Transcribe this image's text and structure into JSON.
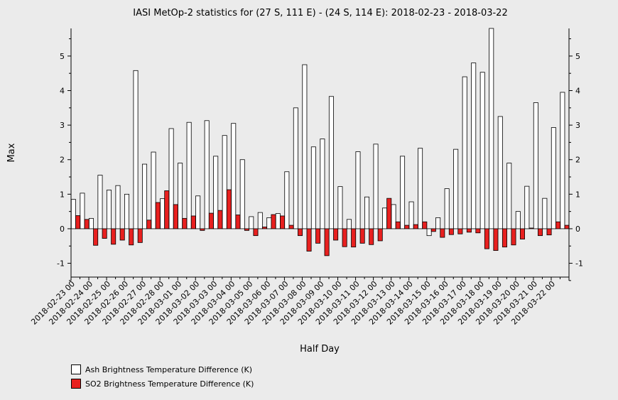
{
  "chart_data": {
    "type": "bar",
    "title": "IASI MetOp-2 statistics for (27 S, 111 E) - (24 S, 114 E): 2018-02-23 - 2018-03-22",
    "xlabel": "Half Day",
    "ylabel": "Max",
    "ylim": [
      -1.4,
      5.8
    ],
    "yticks": [
      -1,
      0,
      1,
      2,
      3,
      4,
      5
    ],
    "grid": false,
    "legend_position": "bottom-left",
    "x_tick_labels": [
      "2018-02-23 00",
      "2018-02-24 00",
      "2018-02-25 00",
      "2018-02-26 00",
      "2018-02-27 00",
      "2018-02-28 00",
      "2018-03-01 00",
      "2018-03-02 00",
      "2018-03-03 00",
      "2018-03-04 00",
      "2018-03-05 00",
      "2018-03-06 00",
      "2018-03-07 00",
      "2018-03-08 00",
      "2018-03-09 00",
      "2018-03-10 00",
      "2018-03-11 00",
      "2018-03-12 00",
      "2018-03-13 00",
      "2018-03-14 00",
      "2018-03-15 00",
      "2018-03-16 00",
      "2018-03-17 00",
      "2018-03-18 00",
      "2018-03-19 00",
      "2018-03-20 00",
      "2018-03-21 00",
      "2018-03-22 00"
    ],
    "series": [
      {
        "name": "Ash Brightness Temperature Difference (K)",
        "color": "#ffffff",
        "values": [
          0.85,
          1.03,
          0.3,
          1.55,
          1.12,
          1.25,
          1.0,
          4.58,
          1.87,
          2.22,
          0.87,
          2.9,
          1.9,
          3.08,
          0.95,
          3.13,
          2.1,
          2.7,
          3.05,
          2.0,
          0.35,
          0.47,
          0.32,
          0.44,
          1.65,
          3.5,
          4.75,
          2.37,
          2.6,
          3.83,
          1.22,
          0.27,
          2.23,
          0.92,
          2.45,
          0.6,
          0.7,
          2.1,
          0.78,
          2.33,
          -0.2,
          0.32,
          1.16,
          2.3,
          4.4,
          4.8,
          4.53,
          5.8,
          3.25,
          1.9,
          0.5,
          1.23,
          3.65,
          0.88,
          2.93,
          3.95
        ]
      },
      {
        "name": "SO2 Brightness Temperature Difference (K)",
        "color": "#e8201f",
        "values": [
          0.38,
          0.27,
          -0.48,
          -0.28,
          -0.45,
          -0.33,
          -0.47,
          -0.4,
          0.25,
          0.76,
          1.1,
          0.7,
          0.3,
          0.37,
          -0.05,
          0.45,
          0.53,
          1.13,
          0.4,
          -0.05,
          -0.2,
          0.05,
          0.41,
          0.37,
          0.1,
          -0.2,
          -0.65,
          -0.42,
          -0.78,
          -0.33,
          -0.52,
          -0.53,
          -0.42,
          -0.46,
          -0.35,
          0.88,
          0.2,
          0.1,
          0.12,
          0.2,
          -0.08,
          -0.25,
          -0.17,
          -0.15,
          -0.1,
          -0.12,
          -0.58,
          -0.63,
          -0.53,
          -0.47,
          -0.3,
          0.02,
          -0.2,
          -0.18,
          0.2,
          0.1
        ]
      }
    ]
  }
}
